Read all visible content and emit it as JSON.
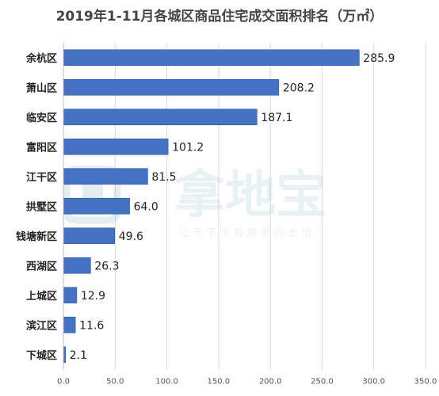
{
  "title": "2019年1-11月各城区商品住宅成交面积排名（万㎡）",
  "watermark": {
    "brand": "拿地宝",
    "slogan": "让 天 下 没 有 难 拿 的 土 地"
  },
  "colors": {
    "bar": "#4472C4",
    "bar_edge": "#2F5597",
    "grid": "#D9D9D9"
  },
  "chart_data": {
    "type": "bar",
    "orientation": "horizontal",
    "title": "2019年1-11月各城区商品住宅成交面积排名（万㎡）",
    "categories": [
      "余杭区",
      "萧山区",
      "临安区",
      "富阳区",
      "江干区",
      "拱墅区",
      "钱塘新区",
      "西湖区",
      "上城区",
      "滨江区",
      "下城区"
    ],
    "values": [
      285.9,
      208.2,
      187.1,
      101.2,
      81.5,
      64.0,
      49.6,
      26.3,
      12.9,
      11.6,
      2.1
    ],
    "value_labels": [
      "285.9",
      "208.2",
      "187.1",
      "101.2",
      "81.5",
      "64.0",
      "49.6",
      "26.3",
      "12.9",
      "11.6",
      "2.1"
    ],
    "xlim": [
      0,
      350
    ],
    "xticks": [
      "0.0",
      "50.0",
      "100.0",
      "150.0",
      "200.0",
      "250.0",
      "300.0",
      "350.0"
    ],
    "grid": true,
    "legend": "none"
  }
}
